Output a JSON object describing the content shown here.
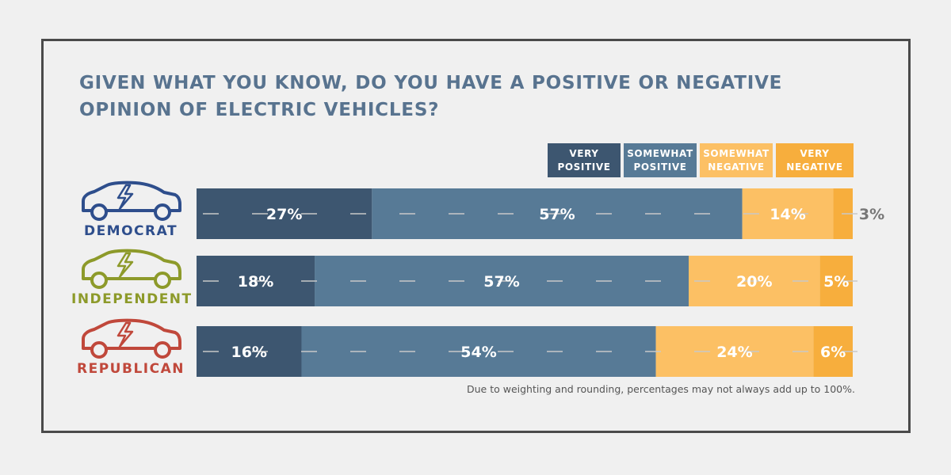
{
  "title": "GIVEN WHAT YOU KNOW, DO YOU HAVE A POSITIVE OR NEGATIVE OPINION OF ELECTRIC VEHICLES?",
  "footnote": "Due to weighting and rounding, percentages may not always add up to 100%.",
  "colors": {
    "very_positive": "#3d5670",
    "somewhat_positive": "#577a96",
    "somewhat_negative": "#fcc064",
    "very_negative": "#f7ae3d",
    "democrat": "#2e4e8c",
    "independent": "#8d9a2a",
    "republican": "#c0483b"
  },
  "chart_data": {
    "type": "bar",
    "orientation": "horizontal",
    "stacked": true,
    "categories": [
      "DEMOCRAT",
      "INDEPENDENT",
      "REPUBLICAN"
    ],
    "series": [
      {
        "name": "VERY POSITIVE",
        "values": [
          27,
          18,
          16
        ],
        "labels": [
          "27%",
          "18%",
          "16%"
        ]
      },
      {
        "name": "SOMEWHAT POSITIVE",
        "values": [
          57,
          57,
          54
        ],
        "labels": [
          "57%",
          "57%",
          "54%"
        ]
      },
      {
        "name": "SOMEWHAT NEGATIVE",
        "values": [
          14,
          20,
          24
        ],
        "labels": [
          "14%",
          "20%",
          "24%"
        ]
      },
      {
        "name": "VERY NEGATIVE",
        "values": [
          3,
          5,
          6
        ],
        "labels": [
          "3%",
          "5%",
          "6%"
        ]
      }
    ],
    "legend": [
      "VERY POSITIVE",
      "SOMEWHAT POSITIVE",
      "SOMEWHAT NEGATIVE",
      "VERY NEGATIVE"
    ],
    "legend_position": "top-right",
    "icons": [
      "car-icon",
      "car-icon",
      "car-icon"
    ]
  }
}
